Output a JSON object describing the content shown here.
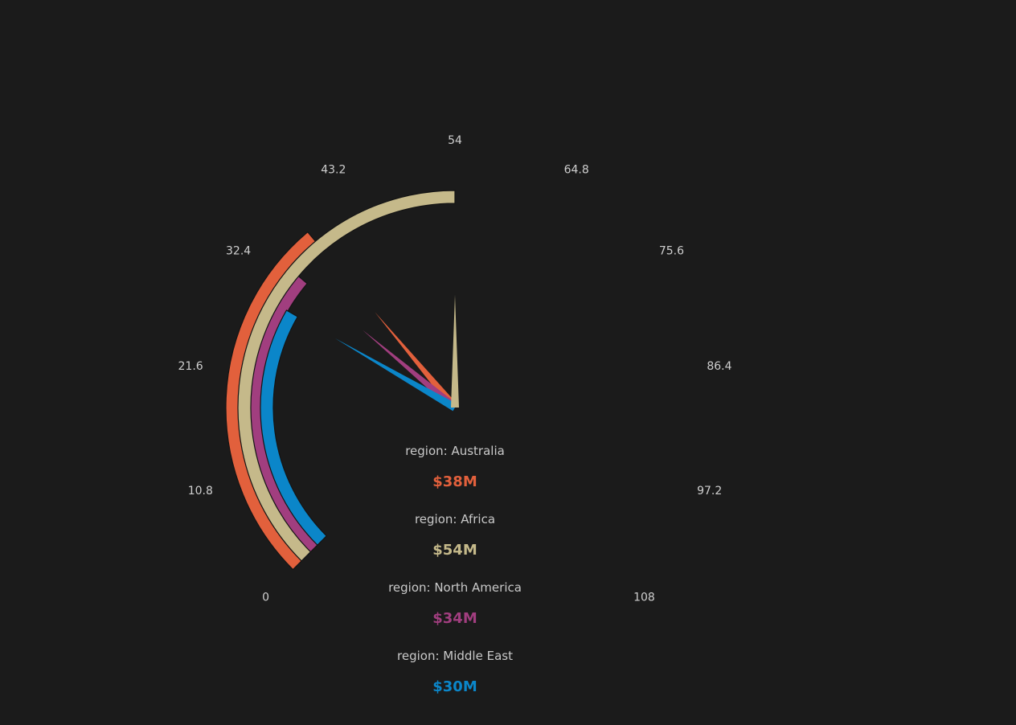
{
  "chart_data": {
    "type": "gauge",
    "axis": {
      "min": 0,
      "max": 108,
      "ticks": [
        "0",
        "10.8",
        "21.6",
        "32.4",
        "43.2",
        "54",
        "64.8",
        "75.6",
        "86.4",
        "97.2",
        "108"
      ]
    },
    "series": [
      {
        "name": "region: Australia",
        "value": 38,
        "display": "$38M",
        "color": "#e2603c"
      },
      {
        "name": "region: Africa",
        "value": 54,
        "display": "$54M",
        "color": "#c5b98a"
      },
      {
        "name": "region: North America",
        "value": 34,
        "display": "$34M",
        "color": "#a13e7f"
      },
      {
        "name": "region: Middle East",
        "value": 30,
        "display": "$30M",
        "color": "#0b86c9"
      }
    ]
  }
}
